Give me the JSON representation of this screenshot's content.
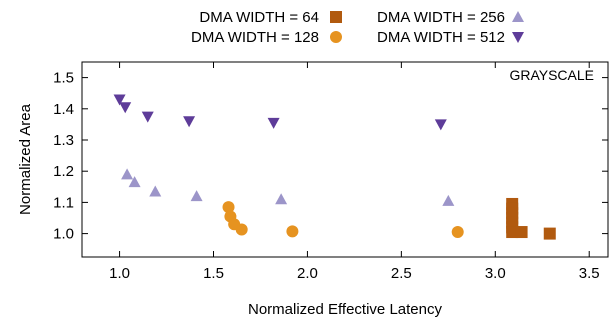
{
  "chart_data": {
    "type": "scatter",
    "xlabel": "Normalized Effective Latency",
    "ylabel": "Normalized Area",
    "xlim": [
      0.8,
      3.6
    ],
    "ylim": [
      0.925,
      1.55
    ],
    "xticks": [
      1.0,
      1.5,
      2.0,
      2.5,
      3.0,
      3.5
    ],
    "xtick_labels": [
      "1.0",
      "1.5",
      "2.0",
      "2.5",
      "3.0",
      "3.5"
    ],
    "yticks": [
      1.0,
      1.1,
      1.2,
      1.3,
      1.4,
      1.5
    ],
    "ytick_labels": [
      "1.0",
      "1.1",
      "1.2",
      "1.3",
      "1.4",
      "1.5"
    ],
    "annotation": "GRAYSCALE",
    "legend_position": "top-outside",
    "series": [
      {
        "name": "DMA WIDTH = 64",
        "marker": "square",
        "color": "#b15a0f",
        "points": [
          [
            3.09,
            1.095
          ],
          [
            3.09,
            1.08
          ],
          [
            3.09,
            1.065
          ],
          [
            3.09,
            1.05
          ],
          [
            3.09,
            1.035
          ],
          [
            3.09,
            1.02
          ],
          [
            3.09,
            1.005
          ],
          [
            3.14,
            1.005
          ],
          [
            3.29,
            1.0
          ]
        ]
      },
      {
        "name": "DMA WIDTH = 128",
        "marker": "circle",
        "color": "#e69320",
        "points": [
          [
            1.58,
            1.085
          ],
          [
            1.59,
            1.055
          ],
          [
            1.61,
            1.03
          ],
          [
            1.65,
            1.013
          ],
          [
            1.92,
            1.007
          ],
          [
            2.8,
            1.005
          ]
        ]
      },
      {
        "name": "DMA WIDTH = 256",
        "marker": "triangle-up",
        "color": "#9c95c9",
        "points": [
          [
            1.04,
            1.19
          ],
          [
            1.08,
            1.165
          ],
          [
            1.19,
            1.135
          ],
          [
            1.41,
            1.12
          ],
          [
            1.86,
            1.11
          ],
          [
            2.75,
            1.105
          ]
        ]
      },
      {
        "name": "DMA WIDTH = 512",
        "marker": "triangle-down",
        "color": "#5e3c99",
        "points": [
          [
            1.0,
            1.43
          ],
          [
            1.03,
            1.405
          ],
          [
            1.15,
            1.375
          ],
          [
            1.37,
            1.36
          ],
          [
            1.82,
            1.355
          ],
          [
            2.71,
            1.35
          ]
        ]
      }
    ]
  }
}
